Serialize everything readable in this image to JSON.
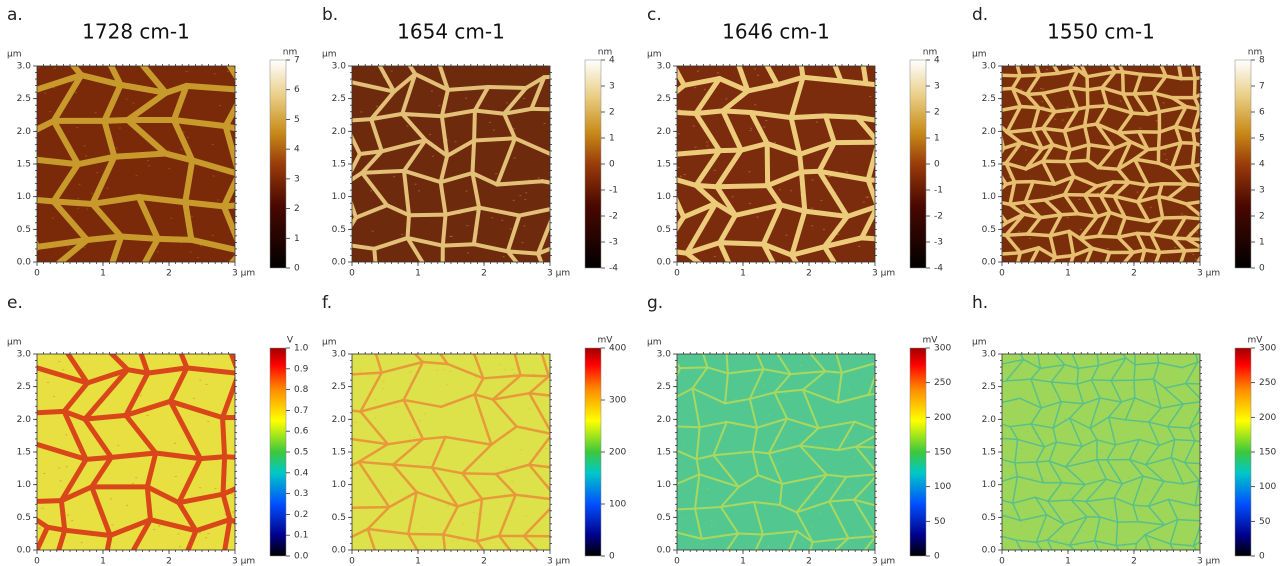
{
  "panels": [
    {
      "letter": "a.",
      "title": "1728 cm-1",
      "axis_unit": "µm",
      "xticks": [
        0,
        1,
        2,
        {
          "value": 3,
          "label": "3 µm"
        }
      ],
      "yticks": [
        {
          "value": 0,
          "label": "0.0"
        },
        {
          "value": 0.5,
          "label": "0.5"
        },
        {
          "value": 1,
          "label": "1.0"
        },
        {
          "value": 1.5,
          "label": "1.5"
        },
        {
          "value": 2,
          "label": "2.0"
        },
        {
          "value": 2.5,
          "label": "2.5"
        },
        {
          "value": 3,
          "label": "3.0"
        }
      ],
      "colorbar": {
        "unit": "nm",
        "lim": [
          0,
          7
        ],
        "ticks": [
          0,
          1,
          2,
          3,
          4,
          5,
          6,
          7
        ]
      }
    },
    {
      "letter": "b.",
      "title": "1654 cm-1",
      "axis_unit": "µm",
      "xticks": [
        0,
        1,
        2,
        {
          "value": 3,
          "label": "3 µm"
        }
      ],
      "yticks": [
        {
          "value": 0,
          "label": "0.0"
        },
        {
          "value": 0.5,
          "label": "0.5"
        },
        {
          "value": 1,
          "label": "1.0"
        },
        {
          "value": 1.5,
          "label": "1.5"
        },
        {
          "value": 2,
          "label": "2.0"
        },
        {
          "value": 2.5,
          "label": "2.5"
        },
        {
          "value": 3,
          "label": "3.0"
        }
      ],
      "colorbar": {
        "unit": "nm",
        "lim": [
          -4,
          4
        ],
        "ticks": [
          -4,
          -3,
          -2,
          -1,
          0,
          1,
          2,
          3,
          4
        ]
      }
    },
    {
      "letter": "c.",
      "title": "1646 cm-1",
      "axis_unit": "µm",
      "xticks": [
        0,
        1,
        2,
        {
          "value": 3,
          "label": "3 µm"
        }
      ],
      "yticks": [
        {
          "value": 0,
          "label": "0.0"
        },
        {
          "value": 0.5,
          "label": "0.5"
        },
        {
          "value": 1,
          "label": "1.0"
        },
        {
          "value": 1.5,
          "label": "1.5"
        },
        {
          "value": 2,
          "label": "2.0"
        },
        {
          "value": 2.5,
          "label": "2.5"
        },
        {
          "value": 3,
          "label": "3.0"
        }
      ],
      "colorbar": {
        "unit": "nm",
        "lim": [
          -4,
          4
        ],
        "ticks": [
          -4,
          -3,
          -2,
          -1,
          0,
          1,
          2,
          3,
          4
        ]
      }
    },
    {
      "letter": "d.",
      "title": "1550 cm-1",
      "axis_unit": "µm",
      "xticks": [
        0,
        1,
        2,
        {
          "value": 3,
          "label": "3 µm"
        }
      ],
      "yticks": [
        {
          "value": 0,
          "label": "0.0"
        },
        {
          "value": 0.5,
          "label": "0.5"
        },
        {
          "value": 1,
          "label": "1.0"
        },
        {
          "value": 1.5,
          "label": "1.5"
        },
        {
          "value": 2,
          "label": "2.0"
        },
        {
          "value": 2.5,
          "label": "2.5"
        },
        {
          "value": 3,
          "label": "3.0"
        }
      ],
      "colorbar": {
        "unit": "nm",
        "lim": [
          0,
          8
        ],
        "ticks": [
          0,
          1,
          2,
          3,
          4,
          5,
          6,
          7,
          8
        ]
      }
    },
    {
      "letter": "e.",
      "axis_unit": "µm",
      "xticks": [
        0,
        1,
        2,
        {
          "value": 3,
          "label": "3 µm"
        }
      ],
      "yticks": [
        {
          "value": 0,
          "label": "0.0"
        },
        {
          "value": 0.5,
          "label": "0.5"
        },
        {
          "value": 1,
          "label": "1.0"
        },
        {
          "value": 1.5,
          "label": "1.5"
        },
        {
          "value": 2,
          "label": "2.0"
        },
        {
          "value": 2.5,
          "label": "2.5"
        },
        {
          "value": 3,
          "label": "3.0"
        }
      ],
      "colorbar": {
        "unit": "V",
        "lim": [
          0,
          1
        ],
        "ticks": [
          {
            "value": 0,
            "label": "0.0"
          },
          0.1,
          0.2,
          0.3,
          0.4,
          0.5,
          0.6,
          0.7,
          0.8,
          0.9,
          {
            "value": 1,
            "label": "1.0"
          }
        ]
      }
    },
    {
      "letter": "f.",
      "axis_unit": "µm",
      "xticks": [
        0,
        1,
        2,
        {
          "value": 3,
          "label": "3 µm"
        }
      ],
      "yticks": [
        {
          "value": 0,
          "label": "0.0"
        },
        {
          "value": 0.5,
          "label": "0.5"
        },
        {
          "value": 1,
          "label": "1.0"
        },
        {
          "value": 1.5,
          "label": "1.5"
        },
        {
          "value": 2,
          "label": "2.0"
        },
        {
          "value": 2.5,
          "label": "2.5"
        },
        {
          "value": 3,
          "label": "3.0"
        }
      ],
      "colorbar": {
        "unit": "mV",
        "lim": [
          0,
          400
        ],
        "ticks": [
          0,
          100,
          200,
          300,
          400
        ]
      }
    },
    {
      "letter": "g.",
      "axis_unit": "µm",
      "xticks": [
        0,
        1,
        2,
        {
          "value": 3,
          "label": "3 µm"
        }
      ],
      "yticks": [
        {
          "value": 0,
          "label": "0.0"
        },
        {
          "value": 0.5,
          "label": "0.5"
        },
        {
          "value": 1,
          "label": "1.0"
        },
        {
          "value": 1.5,
          "label": "1.5"
        },
        {
          "value": 2,
          "label": "2.0"
        },
        {
          "value": 2.5,
          "label": "2.5"
        },
        {
          "value": 3,
          "label": "3.0"
        }
      ],
      "colorbar": {
        "unit": "mV",
        "lim": [
          0,
          300
        ],
        "ticks": [
          0,
          50,
          100,
          150,
          200,
          250,
          300
        ]
      }
    },
    {
      "letter": "h.",
      "axis_unit": "µm",
      "xticks": [
        0,
        1,
        2,
        {
          "value": 3,
          "label": "3 µm"
        }
      ],
      "yticks": [
        {
          "value": 0,
          "label": "0.0"
        },
        {
          "value": 0.5,
          "label": "0.5"
        },
        {
          "value": 1,
          "label": "1.0"
        },
        {
          "value": 1.5,
          "label": "1.5"
        },
        {
          "value": 2,
          "label": "2.0"
        },
        {
          "value": 2.5,
          "label": "2.5"
        },
        {
          "value": 3,
          "label": "3.0"
        }
      ],
      "colorbar": {
        "unit": "mV",
        "lim": [
          0,
          300
        ],
        "ticks": [
          0,
          50,
          100,
          150,
          200,
          250,
          300
        ]
      }
    }
  ]
}
